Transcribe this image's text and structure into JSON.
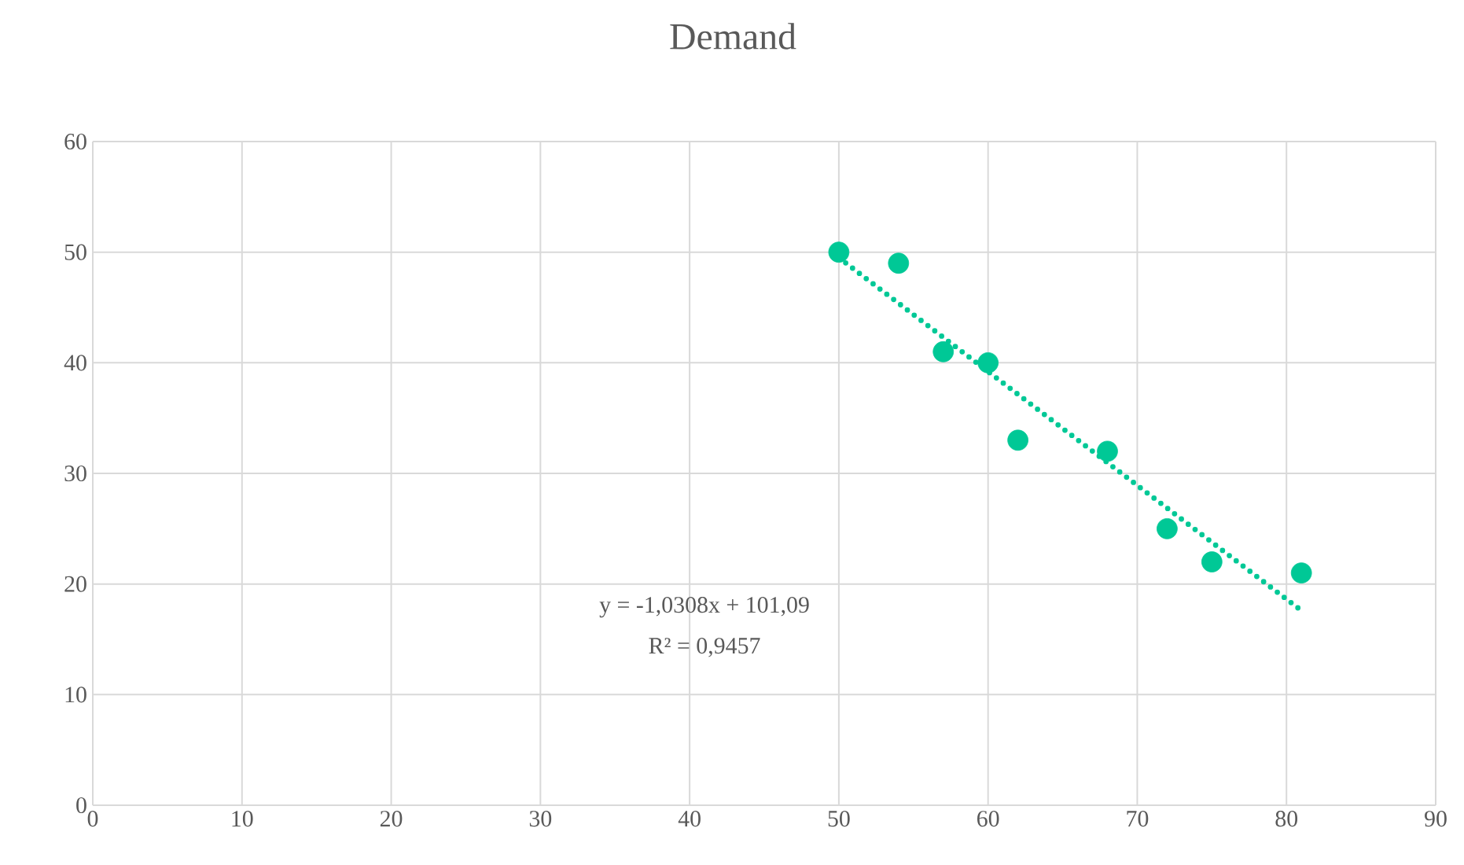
{
  "chart_data": {
    "type": "scatter",
    "title": "Demand",
    "xlim": [
      0,
      90
    ],
    "xticks": [
      0,
      10,
      20,
      30,
      40,
      50,
      60,
      70,
      80,
      90
    ],
    "ylim": [
      0,
      60
    ],
    "yticks": [
      0,
      10,
      20,
      30,
      40,
      50,
      60
    ],
    "grid": true,
    "series": [
      {
        "color": "#00c896",
        "marker": "circle",
        "x": [
          50,
          54,
          57,
          60,
          62,
          68,
          72,
          75,
          81
        ],
        "values": [
          50,
          49,
          41,
          40,
          33,
          32,
          25,
          22,
          21
        ]
      },
      {
        "type": "line",
        "color": "#00c896",
        "line_style": "dotted",
        "marker": "none",
        "x": [
          50,
          81
        ],
        "values": [
          49.5,
          17.6
        ]
      }
    ],
    "annotations": [
      "y = -1,0308x + 101,09",
      "R² = 0,9457"
    ]
  }
}
